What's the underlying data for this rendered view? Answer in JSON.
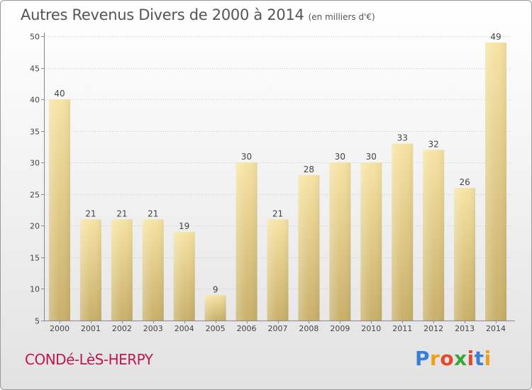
{
  "header": {
    "title": "Autres Revenus Divers de 2000 à 2014",
    "unit": "(en milliers d'€)"
  },
  "footer": {
    "commune": "CONDé-LèS-HERPY",
    "logo_letters": [
      "P",
      "r",
      "o",
      "x",
      "i",
      "t",
      "i"
    ],
    "logo_colors": [
      "#3a7fd5",
      "#f0a018",
      "#e44a2a",
      "#3aa63a",
      "#e44a2a",
      "#3a7fd5",
      "#f0a018"
    ]
  },
  "colors": {
    "bar_top": "#f7e3a3",
    "bar_bottom": "#c9b06a",
    "axis": "#888888",
    "grid": "#cccccc",
    "title": "#555555",
    "commune": "#c0174e"
  },
  "chart_data": {
    "type": "bar",
    "title": "Autres Revenus Divers de 2000 à 2014",
    "ylabel": "",
    "xlabel": "",
    "categories": [
      "2000",
      "2001",
      "2002",
      "2003",
      "2004",
      "2005",
      "2006",
      "2007",
      "2008",
      "2009",
      "2010",
      "2011",
      "2012",
      "2013",
      "2014"
    ],
    "values": [
      40,
      21,
      21,
      21,
      19,
      9,
      30,
      21,
      28,
      30,
      30,
      33,
      32,
      26,
      49
    ],
    "ylim": [
      5,
      50
    ],
    "yticks": [
      5,
      10,
      15,
      20,
      25,
      30,
      35,
      40,
      45,
      50
    ],
    "grid": true,
    "data_labels": true
  }
}
